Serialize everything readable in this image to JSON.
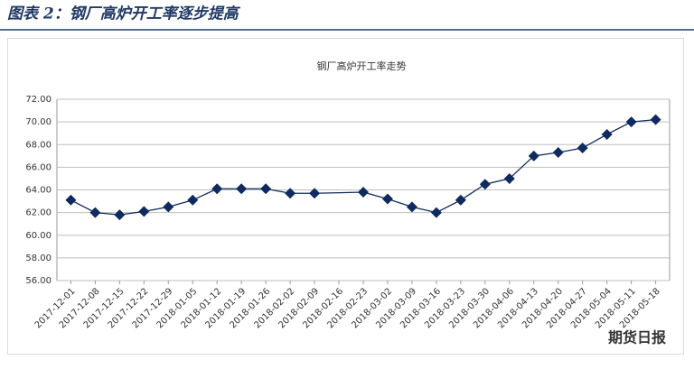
{
  "header": {
    "title": "图表 2：钢厂高炉开工率逐步提高"
  },
  "watermark": "期货日报",
  "chart_data": {
    "type": "line",
    "title": "钢厂高炉开工率走势",
    "x": [
      "2017-12-01",
      "2017-12-08",
      "2017-12-15",
      "2017-12-22",
      "2017-12-29",
      "2018-01-05",
      "2018-01-12",
      "2018-01-19",
      "2018-01-26",
      "2018-02-02",
      "2018-02-09",
      "2018-02-23",
      "2018-03-02",
      "2018-03-09",
      "2018-03-16",
      "2018-03-23",
      "2018-03-30",
      "2018-04-06",
      "2018-04-13",
      "2018-04-20",
      "2018-04-27",
      "2018-05-04",
      "2018-05-11",
      "2018-05-18"
    ],
    "series": [
      {
        "name": "钢厂高炉开工率",
        "color": "#0f2a5e",
        "values": [
          63.1,
          62.0,
          61.8,
          62.1,
          62.5,
          63.1,
          64.1,
          64.1,
          64.1,
          63.7,
          63.7,
          63.8,
          63.2,
          62.5,
          62.0,
          63.1,
          64.5,
          65.0,
          67.0,
          67.3,
          67.7,
          68.9,
          70.0,
          70.2
        ]
      }
    ],
    "xlim": [
      "2017-11-27",
      "2018-05-22"
    ],
    "xticks": [
      "2017-12-01",
      "2017-12-08",
      "2017-12-15",
      "2017-12-22",
      "2017-12-29",
      "2018-01-05",
      "2018-01-12",
      "2018-01-19",
      "2018-01-26",
      "2018-02-02",
      "2018-02-09",
      "2018-02-16",
      "2018-02-23",
      "2018-03-02",
      "2018-03-09",
      "2018-03-16",
      "2018-03-23",
      "2018-03-30",
      "2018-04-06",
      "2018-04-13",
      "2018-04-20",
      "2018-04-27",
      "2018-05-04",
      "2018-05-11",
      "2018-05-18"
    ],
    "ylim": [
      56,
      72
    ],
    "yticks": [
      {
        "value": 56,
        "label": "56.00"
      },
      {
        "value": 58,
        "label": "58.00"
      },
      {
        "value": 60,
        "label": "60.00"
      },
      {
        "value": 62,
        "label": "62.00"
      },
      {
        "value": 64,
        "label": "64.00"
      },
      {
        "value": 66,
        "label": "66.00"
      },
      {
        "value": 68,
        "label": "68.00"
      },
      {
        "value": 70,
        "label": "70.00"
      },
      {
        "value": 72,
        "label": "72.00"
      }
    ]
  }
}
